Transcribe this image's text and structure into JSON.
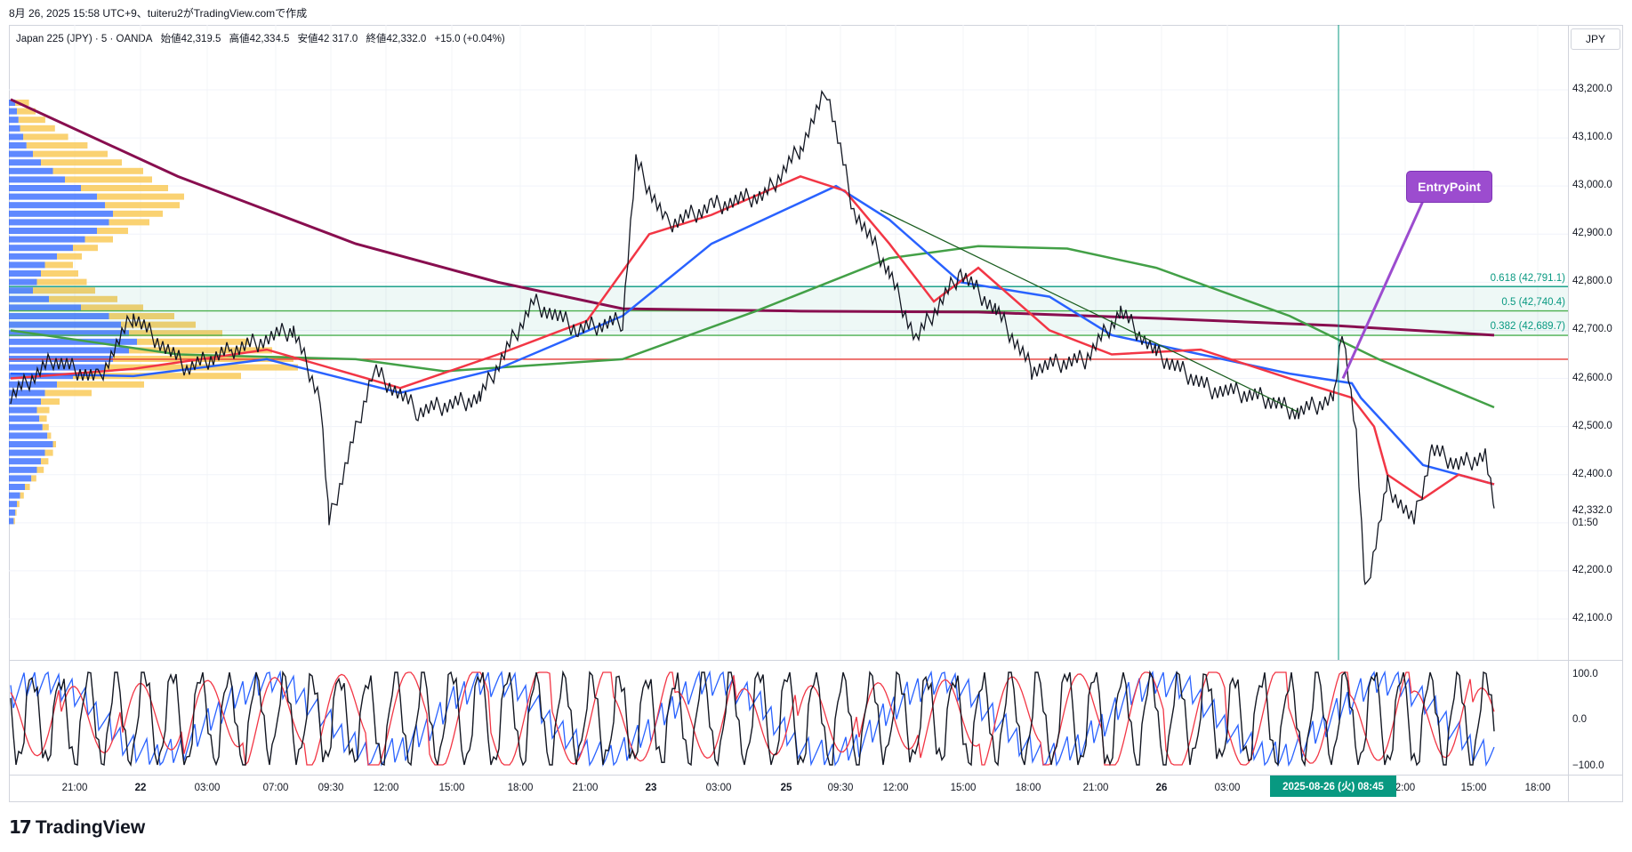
{
  "caption": "8月 26, 2025 15:58 UTC+9、tuiteru2がTradingView.comで作成",
  "symbol": {
    "name": "Japan 225 (JPY) · 5 · OANDA",
    "open": "始値42,319.5",
    "high": "高値42,334.5",
    "low": "安値42,317.0",
    "close": "終値42,332.0",
    "change": "+15.0 (+0.04%)"
  },
  "currency": "JPY",
  "price_axis": [
    "43,200.0",
    "43,100.0",
    "43,000.0",
    "42,900.0",
    "42,800.0",
    "42,700.0",
    "42,600.0",
    "42,500.0",
    "42,400.0",
    "42,200.0",
    "42,100.0"
  ],
  "last_price": "42,332.0",
  "countdown": "01:50",
  "fib_levels": [
    "0.618 (42,791.1)",
    "0.5 (42,740.4)",
    "0.382 (42,689.7)"
  ],
  "oscillator_axis": [
    "100.0",
    "0.0",
    "−100.0"
  ],
  "time_axis": [
    "21:00",
    "22",
    "03:00",
    "07:00",
    "09:30",
    "12:00",
    "15:00",
    "18:00",
    "21:00",
    "23",
    "03:00",
    "25",
    "09:30",
    "12:00",
    "15:00",
    "18:00",
    "21:00",
    "26",
    "03:00",
    "2:00",
    "15:00",
    "18:00"
  ],
  "cursor_time": "2025-08-26 (火)  08:45",
  "entry_label": "EntryPoint",
  "brand": "TradingView",
  "colors": {
    "price_line": "#131722",
    "ema_fast": "#f23645",
    "ema_slow": "#2962ff",
    "ma_green": "#43a047",
    "ma_maroon": "#880e4f",
    "fib": "#089981",
    "support_red": "#e53935",
    "volume_blue": "#2962ff",
    "volume_yellow": "#f9c74f",
    "entry": "#9c4ccf"
  }
}
